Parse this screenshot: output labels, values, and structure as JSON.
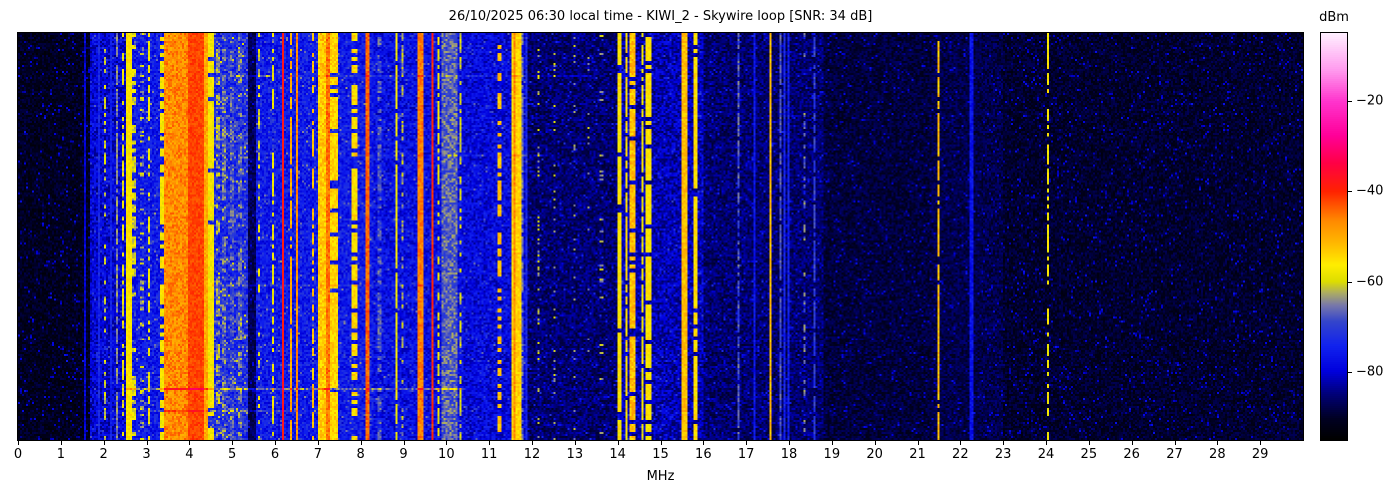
{
  "chart_data": {
    "type": "heatmap",
    "title": "26/10/2025 06:30 local time - KIWI_2 - Skywire loop [SNR: 34 dB]",
    "xlabel": "MHz",
    "x_range": [
      0,
      30
    ],
    "x_ticks": [
      0,
      1,
      2,
      3,
      4,
      5,
      6,
      7,
      8,
      9,
      10,
      11,
      12,
      13,
      14,
      15,
      16,
      17,
      18,
      19,
      20,
      21,
      22,
      23,
      24,
      25,
      26,
      27,
      28,
      29
    ],
    "colorbar": {
      "label": "dBm",
      "range": [
        -95,
        -5
      ],
      "ticks": [
        {
          "v": -20,
          "label": "−20"
        },
        {
          "v": -40,
          "label": "−40"
        },
        {
          "v": -60,
          "label": "−60"
        },
        {
          "v": -80,
          "label": "−80"
        }
      ]
    },
    "colormap": [
      [
        0.0,
        "#000000"
      ],
      [
        0.05,
        "#000022"
      ],
      [
        0.11,
        "#000077"
      ],
      [
        0.167,
        "#0000dd"
      ],
      [
        0.23,
        "#1122ee"
      ],
      [
        0.29,
        "#3344cc"
      ],
      [
        0.33,
        "#7777aa"
      ],
      [
        0.36,
        "#aaaa66"
      ],
      [
        0.389,
        "#dddd00"
      ],
      [
        0.43,
        "#ffee00"
      ],
      [
        0.48,
        "#ffbb00"
      ],
      [
        0.54,
        "#ff8800"
      ],
      [
        0.611,
        "#ff2200"
      ],
      [
        0.68,
        "#ff0044"
      ],
      [
        0.75,
        "#ff0099"
      ],
      [
        0.833,
        "#ff33cc"
      ],
      [
        0.91,
        "#ff99ee"
      ],
      [
        1.0,
        "#ffeeff"
      ]
    ],
    "noise_floor_dbm": [
      {
        "f0": 0.0,
        "f1": 1.7,
        "level": -91,
        "jitter": 3,
        "speckle_p": 0.05,
        "speckle_db": 9
      },
      {
        "f0": 1.7,
        "f1": 2.5,
        "level": -80,
        "jitter": 5,
        "speckle_p": 0.1,
        "speckle_db": 6
      },
      {
        "f0": 2.5,
        "f1": 4.5,
        "level": -76,
        "jitter": 5,
        "speckle_p": 0.12,
        "speckle_db": 6
      },
      {
        "f0": 4.5,
        "f1": 5.38,
        "level": -73,
        "jitter": 6,
        "speckle_p": 0.15,
        "speckle_db": 6
      },
      {
        "f0": 5.38,
        "f1": 5.55,
        "level": -87,
        "jitter": 3,
        "speckle_p": 0.05,
        "speckle_db": 6
      },
      {
        "f0": 5.55,
        "f1": 8.3,
        "level": -76,
        "jitter": 5,
        "speckle_p": 0.12,
        "speckle_db": 6
      },
      {
        "f0": 8.3,
        "f1": 10.4,
        "level": -78,
        "jitter": 5,
        "speckle_p": 0.1,
        "speckle_db": 6
      },
      {
        "f0": 10.4,
        "f1": 11.9,
        "level": -79,
        "jitter": 5,
        "speckle_p": 0.1,
        "speckle_db": 6
      },
      {
        "f0": 11.9,
        "f1": 14.0,
        "level": -86,
        "jitter": 4,
        "speckle_p": 0.06,
        "speckle_db": 8
      },
      {
        "f0": 14.0,
        "f1": 16.0,
        "level": -82,
        "jitter": 5,
        "speckle_p": 0.08,
        "speckle_db": 7
      },
      {
        "f0": 16.0,
        "f1": 18.8,
        "level": -86,
        "jitter": 4,
        "speckle_p": 0.06,
        "speckle_db": 7
      },
      {
        "f0": 18.8,
        "f1": 21.3,
        "level": -89,
        "jitter": 3,
        "speckle_p": 0.05,
        "speckle_db": 7
      },
      {
        "f0": 21.3,
        "f1": 23.0,
        "level": -88,
        "jitter": 3,
        "speckle_p": 0.05,
        "speckle_db": 7
      },
      {
        "f0": 23.0,
        "f1": 30.0,
        "level": -90,
        "jitter": 3,
        "speckle_p": 0.06,
        "speckle_db": 8
      }
    ],
    "signals_dbm": [
      {
        "f0": 1.54,
        "f1": 1.58,
        "level": -80,
        "jitter": 3,
        "duty": 1,
        "seg": 2
      },
      {
        "f0": 1.8,
        "f1": 1.84,
        "level": -75,
        "jitter": 3,
        "duty": 1,
        "seg": 2
      },
      {
        "f0": 1.88,
        "f1": 1.92,
        "level": -74,
        "jitter": 3,
        "duty": 1,
        "seg": 2
      },
      {
        "f0": 2.0,
        "f1": 2.05,
        "level": -61,
        "jitter": 3,
        "duty": 0.45,
        "seg": 2
      },
      {
        "f0": 2.14,
        "f1": 2.18,
        "level": -75,
        "jitter": 3,
        "duty": 1,
        "seg": 2
      },
      {
        "f0": 2.28,
        "f1": 2.33,
        "level": -65,
        "jitter": 3,
        "duty": 0.9,
        "seg": 2
      },
      {
        "f0": 2.42,
        "f1": 2.47,
        "level": -59,
        "jitter": 3,
        "duty": 0.6,
        "seg": 2
      },
      {
        "f0": 2.52,
        "f1": 2.67,
        "level": -56,
        "jitter": 3,
        "duty": 1,
        "seg": 2
      },
      {
        "f0": 2.67,
        "f1": 2.74,
        "level": -60,
        "jitter": 4,
        "duty": 0.5,
        "seg": 2
      },
      {
        "f0": 2.86,
        "f1": 2.92,
        "level": -62,
        "jitter": 4,
        "duty": 0.25,
        "seg": 1
      },
      {
        "f0": 3.02,
        "f1": 3.08,
        "level": -58,
        "jitter": 3,
        "duty": 0.5,
        "seg": 2
      },
      {
        "f0": 3.33,
        "f1": 3.4,
        "level": -57,
        "jitter": 3,
        "duty": 0.7,
        "seg": 2
      },
      {
        "f0": 3.4,
        "f1": 3.95,
        "level": -47,
        "jitter": 4,
        "duty": 1,
        "seg": 2
      },
      {
        "f0": 3.52,
        "f1": 3.56,
        "level": -55,
        "jitter": 3,
        "duty": 0.6,
        "seg": 2
      },
      {
        "f0": 3.74,
        "f1": 3.78,
        "level": -55,
        "jitter": 3,
        "duty": 0.6,
        "seg": 2
      },
      {
        "f0": 3.95,
        "f1": 4.35,
        "level": -42,
        "jitter": 2,
        "duty": 1,
        "seg": 2
      },
      {
        "f0": 4.35,
        "f1": 4.42,
        "level": -50,
        "jitter": 3,
        "duty": 1,
        "seg": 2
      },
      {
        "f0": 4.42,
        "f1": 4.55,
        "level": -57,
        "jitter": 3,
        "duty": 0.9,
        "seg": 2
      },
      {
        "f0": 4.62,
        "f1": 4.7,
        "level": -64,
        "jitter": 5,
        "duty": 0.5,
        "seg": 2
      },
      {
        "f0": 4.78,
        "f1": 4.84,
        "level": -66,
        "jitter": 5,
        "duty": 0.6,
        "seg": 2
      },
      {
        "f0": 4.95,
        "f1": 5.05,
        "level": -68,
        "jitter": 5,
        "duty": 0.7,
        "seg": 2
      },
      {
        "f0": 5.12,
        "f1": 5.22,
        "level": -66,
        "jitter": 5,
        "duty": 0.6,
        "seg": 2
      },
      {
        "f0": 5.6,
        "f1": 5.66,
        "level": -60,
        "jitter": 4,
        "duty": 0.35,
        "seg": 2
      },
      {
        "f0": 5.93,
        "f1": 5.98,
        "level": -58,
        "jitter": 3,
        "duty": 0.5,
        "seg": 2
      },
      {
        "f0": 6.15,
        "f1": 6.21,
        "level": -38,
        "jitter": 2,
        "duty": 1,
        "seg": 2
      },
      {
        "f0": 6.33,
        "f1": 6.37,
        "level": -50,
        "jitter": 3,
        "duty": 0.8,
        "seg": 2
      },
      {
        "f0": 6.47,
        "f1": 6.52,
        "level": -47,
        "jitter": 3,
        "duty": 1,
        "seg": 2
      },
      {
        "f0": 6.86,
        "f1": 6.91,
        "level": -52,
        "jitter": 3,
        "duty": 0.6,
        "seg": 2
      },
      {
        "f0": 7.0,
        "f1": 7.2,
        "level": -53,
        "jitter": 4,
        "duty": 1,
        "seg": 2
      },
      {
        "f0": 7.2,
        "f1": 7.3,
        "level": -45,
        "jitter": 3,
        "duty": 1,
        "seg": 2
      },
      {
        "f0": 7.3,
        "f1": 7.45,
        "level": -54,
        "jitter": 3,
        "duty": 0.85,
        "seg": 2
      },
      {
        "f0": 7.8,
        "f1": 7.92,
        "level": -55,
        "jitter": 4,
        "duty": 0.7,
        "seg": 2
      },
      {
        "f0": 8.12,
        "f1": 8.2,
        "level": -44,
        "jitter": 3,
        "duty": 1,
        "seg": 2
      },
      {
        "f0": 8.42,
        "f1": 8.48,
        "level": -68,
        "jitter": 4,
        "duty": 0.7,
        "seg": 2
      },
      {
        "f0": 8.8,
        "f1": 8.86,
        "level": -58,
        "jitter": 3,
        "duty": 0.9,
        "seg": 2
      },
      {
        "f0": 8.94,
        "f1": 8.99,
        "level": -63,
        "jitter": 4,
        "duty": 0.5,
        "seg": 2
      },
      {
        "f0": 9.35,
        "f1": 9.45,
        "level": -46,
        "jitter": 3,
        "duty": 1,
        "seg": 2
      },
      {
        "f0": 9.65,
        "f1": 9.72,
        "level": -40,
        "jitter": 3,
        "duty": 1,
        "seg": 2
      },
      {
        "f0": 9.78,
        "f1": 9.84,
        "level": -58,
        "jitter": 3,
        "duty": 0.6,
        "seg": 2
      },
      {
        "f0": 9.88,
        "f1": 10.28,
        "level": -67,
        "jitter": 5,
        "duty": 1,
        "seg": 2
      },
      {
        "f0": 10.3,
        "f1": 10.37,
        "level": -60,
        "jitter": 3,
        "duty": 0.6,
        "seg": 2
      },
      {
        "f0": 11.22,
        "f1": 11.28,
        "level": -52,
        "jitter": 3,
        "duty": 0.5,
        "seg": 2
      },
      {
        "f0": 11.53,
        "f1": 11.74,
        "level": -54,
        "jitter": 3,
        "duty": 1,
        "seg": 2
      },
      {
        "f0": 11.56,
        "f1": 11.63,
        "level": -47,
        "jitter": 3,
        "duty": 1,
        "seg": 2
      },
      {
        "f0": 11.76,
        "f1": 11.8,
        "level": -66,
        "jitter": 3,
        "duty": 0.8,
        "seg": 2
      },
      {
        "f0": 11.84,
        "f1": 11.88,
        "level": -74,
        "jitter": 3,
        "duty": 1,
        "seg": 2
      },
      {
        "f0": 12.12,
        "f1": 12.18,
        "level": -62,
        "jitter": 3,
        "duty": 0.18,
        "seg": 1
      },
      {
        "f0": 12.5,
        "f1": 12.56,
        "level": -62,
        "jitter": 3,
        "duty": 0.15,
        "seg": 1
      },
      {
        "f0": 12.95,
        "f1": 13.01,
        "level": -63,
        "jitter": 3,
        "duty": 0.12,
        "seg": 1
      },
      {
        "f0": 13.3,
        "f1": 13.36,
        "level": -63,
        "jitter": 3,
        "duty": 0.1,
        "seg": 1
      },
      {
        "f0": 13.6,
        "f1": 13.66,
        "level": -63,
        "jitter": 3,
        "duty": 0.12,
        "seg": 1
      },
      {
        "f0": 14.02,
        "f1": 14.1,
        "level": -56,
        "jitter": 3,
        "duty": 0.9,
        "seg": 2
      },
      {
        "f0": 14.17,
        "f1": 14.25,
        "level": -55,
        "jitter": 3,
        "duty": 0.9,
        "seg": 2
      },
      {
        "f0": 14.27,
        "f1": 14.4,
        "level": -52,
        "jitter": 4,
        "duty": 0.85,
        "seg": 2
      },
      {
        "f0": 14.55,
        "f1": 14.62,
        "level": -58,
        "jitter": 3,
        "duty": 0.8,
        "seg": 2
      },
      {
        "f0": 14.66,
        "f1": 14.78,
        "level": -56,
        "jitter": 3,
        "duty": 0.85,
        "seg": 2
      },
      {
        "f0": 15.5,
        "f1": 15.63,
        "level": -52,
        "jitter": 3,
        "duty": 1,
        "seg": 2
      },
      {
        "f0": 15.78,
        "f1": 15.85,
        "level": -55,
        "jitter": 3,
        "duty": 0.9,
        "seg": 2
      },
      {
        "f0": 16.8,
        "f1": 16.85,
        "level": -68,
        "jitter": 4,
        "duty": 0.8,
        "seg": 2
      },
      {
        "f0": 17.18,
        "f1": 17.23,
        "level": -76,
        "jitter": 3,
        "duty": 1,
        "seg": 2
      },
      {
        "f0": 17.53,
        "f1": 17.6,
        "level": -52,
        "jitter": 3,
        "duty": 1,
        "seg": 2
      },
      {
        "f0": 17.76,
        "f1": 17.81,
        "level": -68,
        "jitter": 3,
        "duty": 0.9,
        "seg": 2
      },
      {
        "f0": 17.86,
        "f1": 17.91,
        "level": -74,
        "jitter": 3,
        "duty": 1,
        "seg": 2
      },
      {
        "f0": 17.95,
        "f1": 18.0,
        "level": -75,
        "jitter": 3,
        "duty": 1,
        "seg": 2
      },
      {
        "f0": 18.34,
        "f1": 18.4,
        "level": -66,
        "jitter": 4,
        "duty": 0.35,
        "seg": 2
      },
      {
        "f0": 18.58,
        "f1": 18.63,
        "level": -70,
        "jitter": 3,
        "duty": 0.8,
        "seg": 2
      },
      {
        "f0": 21.44,
        "f1": 21.52,
        "level": -52,
        "jitter": 3,
        "duty": 0.9,
        "seg": 2
      },
      {
        "f0": 22.23,
        "f1": 22.28,
        "level": -77,
        "jitter": 3,
        "duty": 1,
        "seg": 2
      },
      {
        "f0": 24.04,
        "f1": 24.09,
        "level": -57,
        "jitter": 3,
        "duty": 0.6,
        "seg": 2
      }
    ],
    "broadband_bursts": [
      {
        "y": 0.105,
        "f0": 4.5,
        "f1": 13.5,
        "boost": 4,
        "rows": 1
      },
      {
        "y": 0.3,
        "f0": 7.9,
        "f1": 12.5,
        "boost": 3,
        "rows": 1
      },
      {
        "y": 0.62,
        "f0": 4.5,
        "f1": 9.5,
        "boost": 3,
        "rows": 1
      },
      {
        "y": 0.875,
        "f0": 2.5,
        "f1": 10.4,
        "boost": 9,
        "rows": 1
      },
      {
        "y": 0.93,
        "f0": 2.8,
        "f1": 6.6,
        "boost": 5,
        "rows": 1
      }
    ]
  }
}
